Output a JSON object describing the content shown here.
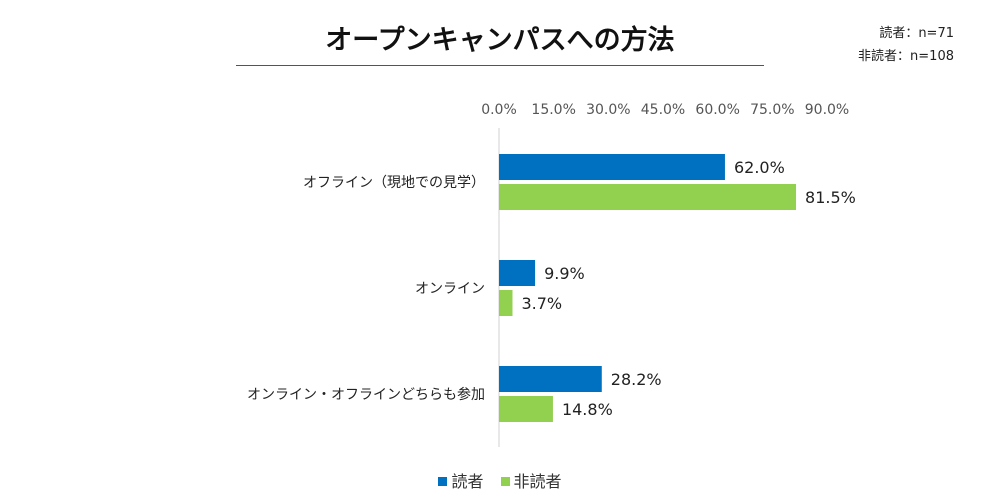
{
  "title": "オープンキャンパスへの方法",
  "sample_sizes": {
    "readers": "読者：n=71",
    "non_readers": "非読者：n=108"
  },
  "colors": {
    "readers": "#0070C0",
    "non_readers": "#92D050"
  },
  "chart_data": {
    "type": "bar",
    "orientation": "horizontal",
    "title": "オープンキャンパスへの方法",
    "categories": [
      "オフライン（現地での見学）",
      "オンライン",
      "オンライン・オフラインどちらも参加"
    ],
    "series": [
      {
        "name": "読者",
        "values": [
          62.0,
          9.9,
          28.2
        ],
        "labels": [
          "62.0%",
          "9.9%",
          "28.2%"
        ]
      },
      {
        "name": "非読者",
        "values": [
          81.5,
          3.7,
          14.8
        ],
        "labels": [
          "81.5%",
          "3.7%",
          "14.8%"
        ]
      }
    ],
    "xlim": [
      0,
      90
    ],
    "xticks": [
      "0.0%",
      "15.0%",
      "30.0%",
      "45.0%",
      "60.0%",
      "75.0%",
      "90.0%"
    ],
    "legend": "bottom",
    "grid": false
  }
}
